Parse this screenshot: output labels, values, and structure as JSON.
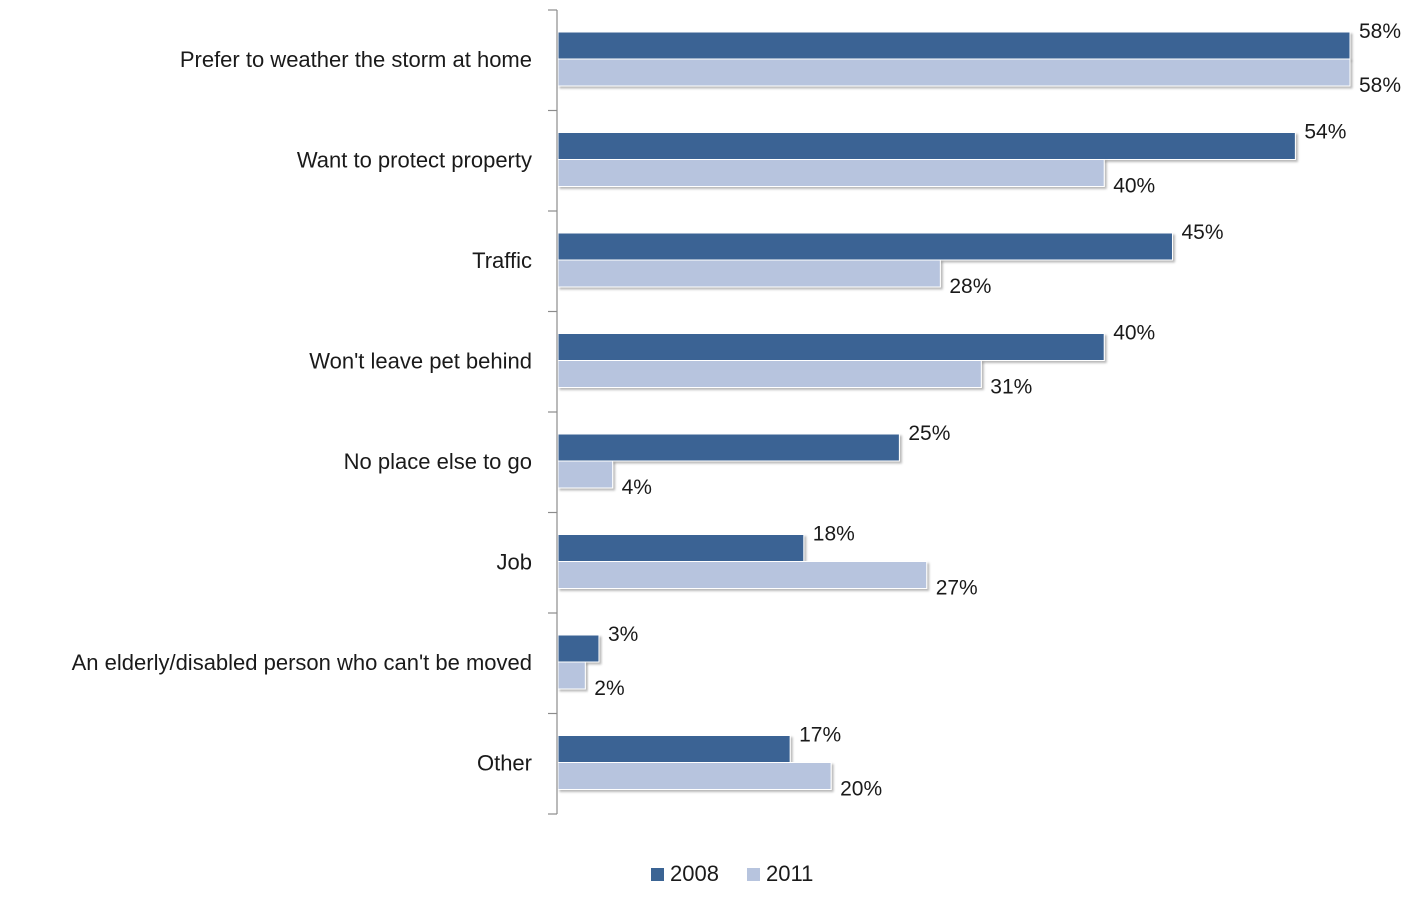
{
  "chart_data": {
    "type": "bar",
    "orientation": "horizontal",
    "categories": [
      "Prefer to weather the storm at home",
      "Want to protect property",
      "Traffic",
      "Won't leave pet behind",
      "No place else to go",
      "Job",
      "An elderly/disabled person who can't be moved",
      "Other"
    ],
    "series": [
      {
        "name": "2008",
        "color": "#3b6494",
        "values": [
          58,
          54,
          45,
          40,
          25,
          18,
          3,
          17
        ],
        "labels": [
          "58%",
          "54%",
          "45%",
          "40%",
          "25%",
          "18%",
          "3%",
          "17%"
        ]
      },
      {
        "name": "2011",
        "color": "#b7c4de",
        "values": [
          58,
          40,
          28,
          31,
          4,
          27,
          2,
          20
        ],
        "labels": [
          "58%",
          "40%",
          "28%",
          "31%",
          "4%",
          "27%",
          "2%",
          "20%"
        ]
      }
    ],
    "xlim": [
      0,
      58
    ],
    "grid": false,
    "legend_position": "bottom"
  }
}
